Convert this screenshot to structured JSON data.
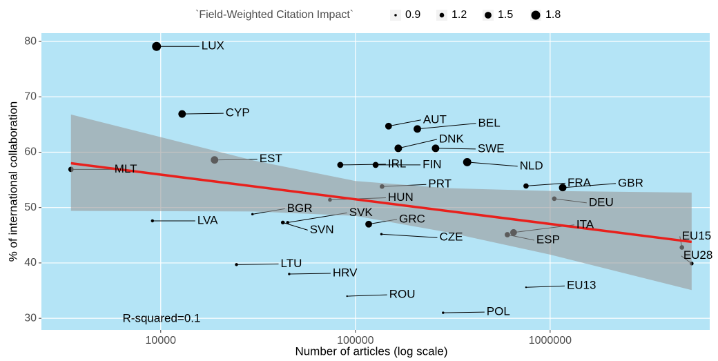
{
  "chart_data": {
    "type": "scatter",
    "x_label": "Number of articles (log scale)",
    "y_label": "% of international collaboration",
    "legend_title": "`Field-Weighted Citation Impact`",
    "size_legend": [
      0.9,
      1.2,
      1.5,
      1.8
    ],
    "annotation": "R-squared=0.1",
    "log_x": true,
    "grid": true,
    "background": "#b4e4f6",
    "color": "#000000",
    "labels": [
      "LUX",
      "CYP",
      "MLT",
      "EST",
      "LVA",
      "BGR",
      "SVK",
      "SVN",
      "LTU",
      "HRV",
      "HUN",
      "PRT",
      "IRL",
      "FIN",
      "GRC",
      "CZE",
      "ROU",
      "POL",
      "AUT",
      "BEL",
      "DNK",
      "SWE",
      "NLD",
      "FRA",
      "GBR",
      "DEU",
      "ITA",
      "ESP",
      "EU13",
      "EU15",
      "EU28"
    ],
    "x": [
      9520,
      12880,
      3460,
      18900,
      9070,
      29600,
      44900,
      42400,
      24500,
      45700,
      74000,
      137000,
      83600,
      127000,
      117000,
      136000,
      90600,
      282000,
      148000,
      208000,
      166000,
      258000,
      375000,
      752000,
      1160000,
      1050000,
      649000,
      603000,
      752000,
      4750000,
      5330000
    ],
    "y": [
      79.1,
      66.9,
      56.9,
      58.6,
      47.6,
      48.8,
      47.3,
      47.3,
      39.7,
      38.0,
      51.4,
      53.8,
      57.7,
      57.7,
      47.0,
      45.2,
      34.0,
      31.0,
      64.7,
      64.2,
      60.7,
      60.7,
      58.2,
      53.9,
      53.6,
      51.6,
      45.5,
      45.1,
      35.6,
      42.8,
      39.9
    ],
    "sizes": [
      1.8,
      1.6,
      1.3,
      1.6,
      1.0,
      0.9,
      1.0,
      1.1,
      1.0,
      0.9,
      1.1,
      1.2,
      1.4,
      1.4,
      1.5,
      0.9,
      0.8,
      0.9,
      1.5,
      1.6,
      1.6,
      1.6,
      1.7,
      1.3,
      1.6,
      1.2,
      1.5,
      1.3,
      0.8,
      1.2,
      1.1
    ],
    "trend": {
      "x": [
        3460,
        5330000
      ],
      "y": [
        58.0,
        43.8
      ],
      "color": "#e8201c"
    },
    "ribbon": {
      "x": [
        3460,
        30000,
        100000,
        300000,
        1000000,
        5330000
      ],
      "upper": [
        66.8,
        58.5,
        54.8,
        53.5,
        53.0,
        52.7
      ],
      "lower": [
        49.4,
        49.3,
        48.5,
        45.5,
        41.5,
        35.1
      ],
      "color": "#999999"
    },
    "xlim": [
      2440,
      6600000
    ],
    "xticks": [
      10000,
      100000,
      1000000
    ],
    "ylim": [
      27.9,
      81.5
    ],
    "yticks": [
      30,
      40,
      50,
      60,
      70,
      80
    ]
  }
}
